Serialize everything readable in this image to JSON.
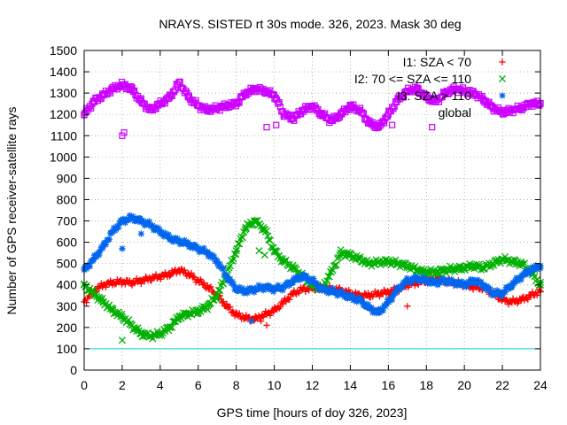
{
  "chart_data": {
    "type": "scatter",
    "title": "NRAYS. SISTED rt 30s mode. 326, 2023. Mask 30 deg",
    "xlabel": "GPS time [hours of doy 326, 2023]",
    "ylabel": "Number of GPS receiver-satellite rays",
    "xlim": [
      0,
      24
    ],
    "ylim": [
      0,
      1500
    ],
    "x_ticks": [
      "0",
      "2",
      "4",
      "6",
      "8",
      "10",
      "12",
      "14",
      "16",
      "18",
      "20",
      "22",
      "24"
    ],
    "y_ticks": [
      "0",
      "100",
      "200",
      "300",
      "400",
      "500",
      "600",
      "700",
      "800",
      "900",
      "1000",
      "1100",
      "1200",
      "1300",
      "1400",
      "1500"
    ],
    "grid": "dotted",
    "legend_position": "top-right",
    "reference_line": {
      "y": 100,
      "color": "#00ccdd"
    },
    "series": [
      {
        "name": "I1: SZA < 70",
        "marker": "plus",
        "color": "#ff0000",
        "points": [
          [
            0,
            320
          ],
          [
            0.5,
            370
          ],
          [
            1,
            400
          ],
          [
            1.5,
            410
          ],
          [
            2,
            415
          ],
          [
            2.5,
            410
          ],
          [
            3,
            420
          ],
          [
            3.5,
            430
          ],
          [
            4,
            440
          ],
          [
            4.5,
            450
          ],
          [
            5,
            470
          ],
          [
            5.5,
            450
          ],
          [
            6,
            420
          ],
          [
            6.5,
            390
          ],
          [
            7,
            350
          ],
          [
            7.5,
            300
          ],
          [
            8,
            260
          ],
          [
            8.5,
            245
          ],
          [
            9,
            240
          ],
          [
            9.5,
            260
          ],
          [
            10,
            280
          ],
          [
            10.5,
            320
          ],
          [
            11,
            360
          ],
          [
            11.5,
            380
          ],
          [
            12,
            385
          ],
          [
            12.5,
            385
          ],
          [
            13,
            380
          ],
          [
            13.5,
            375
          ],
          [
            14,
            360
          ],
          [
            14.5,
            350
          ],
          [
            15,
            350
          ],
          [
            15.5,
            360
          ],
          [
            16,
            365
          ],
          [
            16.5,
            380
          ],
          [
            17,
            400
          ],
          [
            17.5,
            410
          ],
          [
            18,
            420
          ],
          [
            18.5,
            430
          ],
          [
            19,
            420
          ],
          [
            19.5,
            410
          ],
          [
            20,
            400
          ],
          [
            20.5,
            390
          ],
          [
            21,
            385
          ],
          [
            21.5,
            360
          ],
          [
            22,
            330
          ],
          [
            22.5,
            320
          ],
          [
            23,
            330
          ],
          [
            23.5,
            350
          ],
          [
            24,
            370
          ]
        ]
      },
      {
        "name": "I2: 70 <= SZA <= 110",
        "marker": "cross",
        "color": "#00b000",
        "points": [
          [
            0,
            400
          ],
          [
            0.5,
            360
          ],
          [
            1,
            320
          ],
          [
            1.5,
            280
          ],
          [
            2,
            250
          ],
          [
            2.5,
            210
          ],
          [
            3,
            170
          ],
          [
            3.5,
            160
          ],
          [
            4,
            170
          ],
          [
            4.5,
            200
          ],
          [
            5,
            250
          ],
          [
            5.5,
            265
          ],
          [
            6,
            275
          ],
          [
            6.5,
            300
          ],
          [
            7,
            350
          ],
          [
            7.5,
            450
          ],
          [
            8,
            560
          ],
          [
            8.5,
            670
          ],
          [
            9,
            700
          ],
          [
            9.5,
            660
          ],
          [
            10,
            560
          ],
          [
            10.5,
            510
          ],
          [
            11,
            480
          ],
          [
            11.5,
            440
          ],
          [
            12,
            400
          ],
          [
            12.5,
            380
          ],
          [
            13,
            460
          ],
          [
            13.5,
            550
          ],
          [
            14,
            540
          ],
          [
            14.5,
            520
          ],
          [
            15,
            500
          ],
          [
            15.5,
            505
          ],
          [
            16,
            510
          ],
          [
            16.5,
            500
          ],
          [
            17,
            490
          ],
          [
            17.5,
            470
          ],
          [
            18,
            460
          ],
          [
            18.5,
            460
          ],
          [
            19,
            470
          ],
          [
            19.5,
            475
          ],
          [
            20,
            480
          ],
          [
            20.5,
            490
          ],
          [
            21,
            480
          ],
          [
            21.5,
            500
          ],
          [
            22,
            520
          ],
          [
            22.5,
            510
          ],
          [
            23,
            500
          ],
          [
            23.5,
            460
          ],
          [
            24,
            400
          ]
        ]
      },
      {
        "name": "I3: SZA > 110",
        "marker": "star",
        "color": "#0066ee",
        "points": [
          [
            0,
            470
          ],
          [
            0.5,
            520
          ],
          [
            1,
            580
          ],
          [
            1.5,
            650
          ],
          [
            2,
            700
          ],
          [
            2.5,
            715
          ],
          [
            3,
            700
          ],
          [
            3.5,
            680
          ],
          [
            4,
            650
          ],
          [
            4.5,
            620
          ],
          [
            5,
            605
          ],
          [
            5.5,
            590
          ],
          [
            6,
            570
          ],
          [
            6.5,
            550
          ],
          [
            7,
            510
          ],
          [
            7.5,
            440
          ],
          [
            8,
            380
          ],
          [
            8.5,
            370
          ],
          [
            9,
            380
          ],
          [
            9.5,
            390
          ],
          [
            10,
            380
          ],
          [
            10.5,
            390
          ],
          [
            11,
            420
          ],
          [
            11.5,
            440
          ],
          [
            12,
            420
          ],
          [
            12.5,
            380
          ],
          [
            13,
            370
          ],
          [
            13.5,
            360
          ],
          [
            14,
            340
          ],
          [
            14.5,
            330
          ],
          [
            15,
            290
          ],
          [
            15.5,
            270
          ],
          [
            16,
            320
          ],
          [
            16.5,
            380
          ],
          [
            17,
            420
          ],
          [
            17.5,
            430
          ],
          [
            18,
            420
          ],
          [
            18.5,
            410
          ],
          [
            19,
            420
          ],
          [
            19.5,
            410
          ],
          [
            20,
            400
          ],
          [
            20.5,
            420
          ],
          [
            21,
            400
          ],
          [
            21.5,
            360
          ],
          [
            22,
            360
          ],
          [
            22.5,
            400
          ],
          [
            23,
            440
          ],
          [
            23.5,
            470
          ],
          [
            24,
            490
          ]
        ]
      },
      {
        "name": "global",
        "marker": "square",
        "color": "#cc00ff",
        "points": [
          [
            0,
            1200
          ],
          [
            0.5,
            1260
          ],
          [
            1,
            1290
          ],
          [
            1.5,
            1320
          ],
          [
            2,
            1340
          ],
          [
            2.5,
            1320
          ],
          [
            3,
            1260
          ],
          [
            3.5,
            1220
          ],
          [
            4,
            1250
          ],
          [
            4.5,
            1280
          ],
          [
            5,
            1350
          ],
          [
            5.5,
            1280
          ],
          [
            6,
            1240
          ],
          [
            6.5,
            1220
          ],
          [
            7,
            1230
          ],
          [
            7.5,
            1240
          ],
          [
            8,
            1250
          ],
          [
            8.5,
            1300
          ],
          [
            9,
            1320
          ],
          [
            9.5,
            1310
          ],
          [
            10,
            1290
          ],
          [
            10.5,
            1200
          ],
          [
            11,
            1180
          ],
          [
            11.5,
            1220
          ],
          [
            12,
            1240
          ],
          [
            12.5,
            1200
          ],
          [
            13,
            1170
          ],
          [
            13.5,
            1200
          ],
          [
            14,
            1240
          ],
          [
            14.5,
            1220
          ],
          [
            15,
            1160
          ],
          [
            15.5,
            1140
          ],
          [
            16,
            1200
          ],
          [
            16.5,
            1270
          ],
          [
            17,
            1310
          ],
          [
            17.5,
            1320
          ],
          [
            18,
            1280
          ],
          [
            18.5,
            1260
          ],
          [
            19,
            1300
          ],
          [
            19.5,
            1320
          ],
          [
            20,
            1310
          ],
          [
            20.5,
            1300
          ],
          [
            21,
            1270
          ],
          [
            21.5,
            1230
          ],
          [
            22,
            1210
          ],
          [
            22.5,
            1220
          ],
          [
            23,
            1230
          ],
          [
            23.5,
            1250
          ],
          [
            24,
            1250
          ]
        ]
      }
    ],
    "outliers": [
      {
        "series": 1,
        "points": [
          [
            2,
            140
          ],
          [
            9.2,
            560
          ],
          [
            9.5,
            540
          ]
        ]
      },
      {
        "series": 2,
        "points": [
          [
            2,
            570
          ],
          [
            3,
            640
          ],
          [
            8.8,
            230
          ]
        ]
      },
      {
        "series": 0,
        "points": [
          [
            9.3,
            230
          ],
          [
            9.6,
            210
          ],
          [
            17,
            300
          ]
        ]
      },
      {
        "series": 3,
        "points": [
          [
            2,
            1100
          ],
          [
            2.1,
            1115
          ],
          [
            9.6,
            1140
          ],
          [
            10.1,
            1150
          ],
          [
            16.2,
            1150
          ],
          [
            18.3,
            1140
          ]
        ]
      }
    ]
  }
}
